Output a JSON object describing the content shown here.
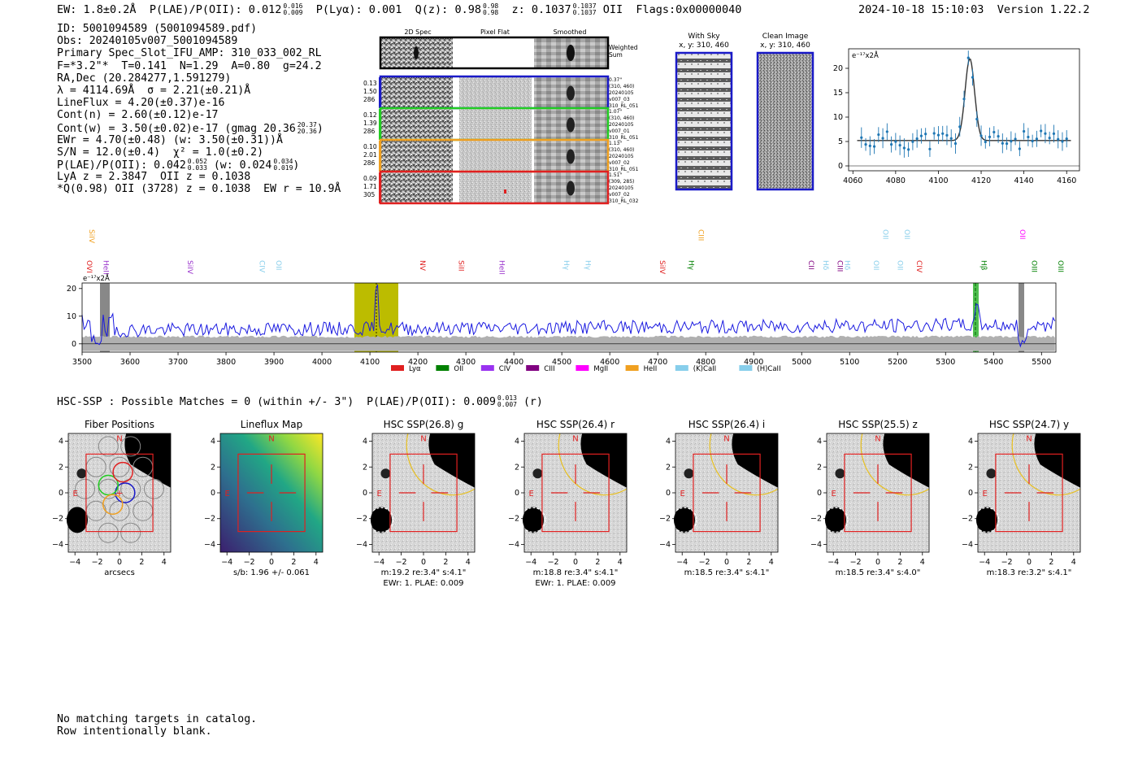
{
  "top": {
    "ew": "EW: 1.8±0.2Å",
    "plae_label": "P(LAE)/P(OII): 0.012",
    "plae_hi": "0.016",
    "plae_lo": "0.009",
    "plya": "P(Lyα): 0.001",
    "q_label": "Q(z): 0.98",
    "q_hi": "0.98",
    "q_lo": "0.98",
    "z_label": "z: 0.1037",
    "z_hi": "0.1037",
    "z_lo": "0.1037",
    "z_line": "OII",
    "flags": "Flags:0x00000040",
    "timestamp": "2024-10-18 15:10:03",
    "version": "Version 1.22.2"
  },
  "info": {
    "id": "ID: 5001094589 (5001094589.pdf)",
    "obs": "Obs: 20240105v007_5001094589",
    "primary": "Primary Spec_Slot_IFU_AMP: 310_033_002_RL",
    "params": "F=*3.2\"*  T=0.141  N=1.29  A=0.80  g=24.2",
    "radec": "RA,Dec (20.284277,1.591279)",
    "lambda": "λ = 4114.69Å  σ = 2.21(±0.21)Å",
    "lineflux": "LineFlux = 4.20(±0.37)e-16",
    "contn": "Cont(n) = 2.60(±0.12)e-17",
    "contw": "Cont(w) = 3.50(±0.02)e-17 (gmag 20.36",
    "contw_hi": "20.37",
    "contw_lo": "20.36",
    "contw_end": ")",
    "ewr": "EWr = 4.70(±0.48) (w: 3.50(±0.31))Å",
    "sn": "S/N = 12.0(±0.4)  χ² = 1.0(±0.2)",
    "plae": "P(LAE)/P(OII): 0.042",
    "plae_hi": "0.052",
    "plae_lo": "0.033",
    "plae_w": "(w: 0.024",
    "plae_w_hi": "0.034",
    "plae_w_lo": "0.019",
    "plae_w_end": ")",
    "lya": "LyA z = 2.3847  OII z = 0.1038",
    "q": "*Q(0.98) OII (3728) z = 0.1038  EW r = 10.9Å"
  },
  "cutouts": {
    "headers": [
      "2D Spec",
      "Pixel Flat",
      "Smoothed"
    ],
    "weighted_sum": [
      "Weighted",
      "Sum"
    ],
    "rows": [
      {
        "left": [
          "0.13",
          "1.50",
          "286"
        ],
        "right": [
          "0.37\"",
          "(310, 460)",
          "20240105",
          "v007_03",
          "310_RL_051"
        ],
        "color": "#1a1ac8"
      },
      {
        "left": [
          "0.12",
          "1.39",
          "286"
        ],
        "right": [
          "1.07\"",
          "(310, 460)",
          "20240105",
          "v007_01",
          "310_RL_051"
        ],
        "color": "#22cc22"
      },
      {
        "left": [
          "0.10",
          "2.01",
          "286"
        ],
        "right": [
          "1.13\"",
          "(310, 460)",
          "20240105",
          "v007_02",
          "310_RL_051"
        ],
        "color": "#f0a020"
      },
      {
        "left": [
          "0.09",
          "1.71",
          "305"
        ],
        "right": [
          "1.51\"",
          "(309, 285)",
          "20240105",
          "v007_02",
          "310_RL_032"
        ],
        "color": "#e02020"
      }
    ]
  },
  "sky": {
    "with_sky": "With Sky",
    "with_sky_xy": "x, y: 310, 460",
    "clean": "Clean Image",
    "clean_xy": "x, y: 310, 460"
  },
  "zoom_plot": {
    "unit": "e⁻¹⁷x2Å",
    "xticks": [
      "4060",
      "4080",
      "4100",
      "4120",
      "4140",
      "4160"
    ],
    "yticks": [
      "0",
      "5",
      "10",
      "15",
      "20"
    ]
  },
  "spectrum": {
    "unit": "e⁻¹⁷x2Å",
    "yticks": [
      "0",
      "10",
      "20"
    ],
    "xticks": [
      "3500",
      "3600",
      "3700",
      "3800",
      "3900",
      "4000",
      "4100",
      "4200",
      "4300",
      "4400",
      "4500",
      "4600",
      "4700",
      "4800",
      "4900",
      "5000",
      "5100",
      "5200",
      "5300",
      "5400",
      "5500"
    ],
    "lines_upper": [
      {
        "label": "SiIV",
        "color": "#f0a020",
        "x": 3510
      },
      {
        "label": "CIII",
        "color": "#f0a020",
        "x": 4780
      },
      {
        "label": "OII",
        "color": "#87ceeb",
        "x": 5165
      },
      {
        "label": "OII",
        "color": "#87ceeb",
        "x": 5210
      },
      {
        "label": "OII",
        "color": "#ff00ff",
        "x": 5450
      }
    ],
    "lines_lower": [
      {
        "label": "OVI",
        "color": "#e02020",
        "x": 3505
      },
      {
        "label": "HeII",
        "color": "#9932cc",
        "x": 3540
      },
      {
        "label": "SiIV",
        "color": "#9932cc",
        "x": 3715
      },
      {
        "label": "CIV",
        "color": "#87ceeb",
        "x": 3865
      },
      {
        "label": "OII",
        "color": "#87ceeb",
        "x": 3900
      },
      {
        "label": "NV",
        "color": "#e02020",
        "x": 4200
      },
      {
        "label": "SiII",
        "color": "#e02020",
        "x": 4280
      },
      {
        "label": "HeII",
        "color": "#9932cc",
        "x": 4365
      },
      {
        "label": "Hγ",
        "color": "#87ceeb",
        "x": 4500
      },
      {
        "label": "Hγ",
        "color": "#87ceeb",
        "x": 4545
      },
      {
        "label": "SiIV",
        "color": "#e02020",
        "x": 4700
      },
      {
        "label": "Hγ",
        "color": "#008000",
        "x": 4760
      },
      {
        "label": "CII",
        "color": "#800080",
        "x": 5010
      },
      {
        "label": "Hδ",
        "color": "#87ceeb",
        "x": 5040
      },
      {
        "label": "CIII",
        "color": "#800080",
        "x": 5070
      },
      {
        "label": "Hδ",
        "color": "#87ceeb",
        "x": 5085
      },
      {
        "label": "OII",
        "color": "#87ceeb",
        "x": 5145
      },
      {
        "label": "OII",
        "color": "#87ceeb",
        "x": 5195
      },
      {
        "label": "CIV",
        "color": "#e02020",
        "x": 5235
      },
      {
        "label": "Hβ",
        "color": "#008000",
        "x": 5370
      },
      {
        "label": "OIII",
        "color": "#008000",
        "x": 5475
      },
      {
        "label": "OIII",
        "color": "#008000",
        "x": 5530
      }
    ],
    "legend": [
      {
        "label": "Lyα",
        "color": "#e02020"
      },
      {
        "label": "OII",
        "color": "#008000"
      },
      {
        "label": "CIV",
        "color": "#9932f0"
      },
      {
        "label": "CIII",
        "color": "#800080"
      },
      {
        "label": "MgII",
        "color": "#ff00ff"
      },
      {
        "label": "HeII",
        "color": "#f0a020"
      },
      {
        "label": "(K)CaII",
        "color": "#87ceeb"
      },
      {
        "label": "(H)CaII",
        "color": "#87ceeb"
      }
    ]
  },
  "hsc": {
    "header": "HSC-SSP : Possible Matches = 0 (within +/- 3\")  P(LAE)/P(OII): 0.009",
    "header_hi": "0.013",
    "header_lo": "0.007",
    "header_end": "(r)",
    "panels": [
      {
        "title": "Fiber Positions",
        "below": [
          "arcsecs"
        ]
      },
      {
        "title": "Lineflux Map",
        "below": [
          "s/b: 1.96 +/- 0.061"
        ]
      },
      {
        "title": "HSC SSP(26.8) g",
        "below": [
          "m:19.2  re:3.4\"  s:4.1\"",
          "EWr: 1. PLAE: 0.009"
        ]
      },
      {
        "title": "HSC SSP(26.4) r",
        "below": [
          "m:18.8  re:3.4\"  s:4.1\"",
          "EWr: 1. PLAE: 0.009"
        ]
      },
      {
        "title": "HSC SSP(26.4) i",
        "below": [
          "m:18.5  re:3.4\"  s:4.1\""
        ]
      },
      {
        "title": "HSC SSP(25.5) z",
        "below": [
          "m:18.5  re:3.4\"  s:4.0\""
        ]
      },
      {
        "title": "HSC SSP(24.7) y",
        "below": [
          "m:18.3  re:3.2\"  s:4.1\""
        ]
      }
    ],
    "xticks": [
      "−4",
      "−2",
      "0",
      "2",
      "4"
    ],
    "yticks": [
      "4",
      "2",
      "0",
      "−2",
      "−4"
    ],
    "north": "N",
    "east": "E"
  },
  "footer": {
    "line1": "No matching targets in catalog.",
    "line2": "Row intentionally blank."
  }
}
